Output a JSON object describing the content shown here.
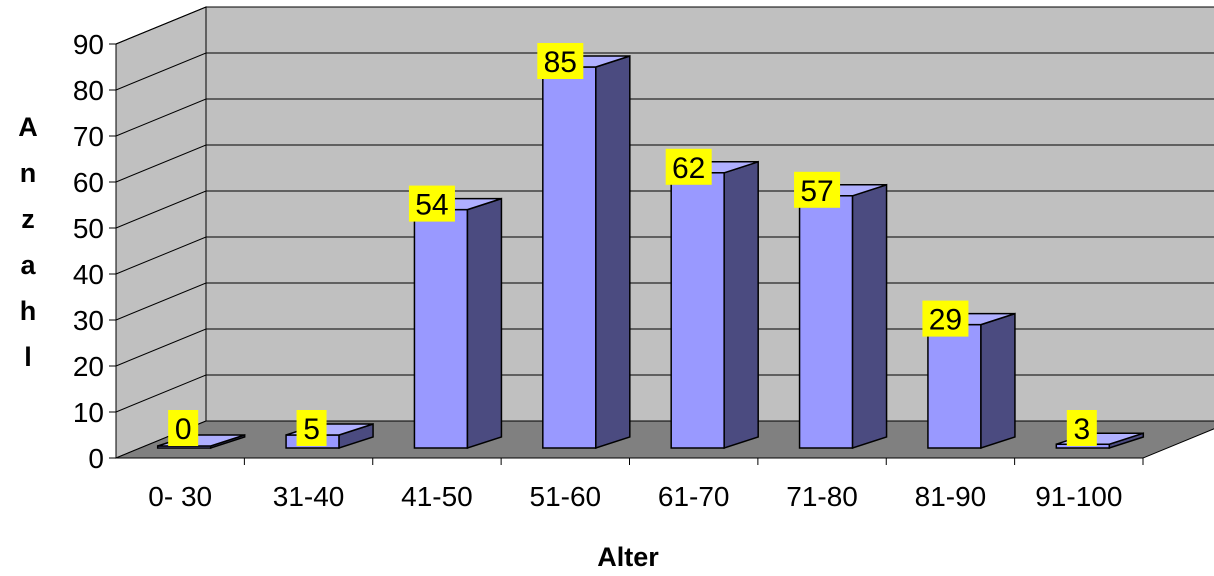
{
  "chart_data": {
    "type": "bar",
    "categories": [
      "0- 30",
      "31-40",
      "41-50",
      "51-60",
      "61-70",
      "71-80",
      "81-90",
      "91-100"
    ],
    "values": [
      0,
      5,
      54,
      85,
      62,
      57,
      29,
      3
    ],
    "title": "",
    "xlabel": "Alter",
    "ylabel_letters": [
      "A",
      "n",
      "z",
      "a",
      "h",
      "l"
    ],
    "ylim": [
      0,
      90
    ],
    "yticks": [
      "0",
      "10",
      "20",
      "30",
      "40",
      "50",
      "60",
      "70",
      "80",
      "90"
    ],
    "grid": true,
    "three_d": true,
    "colors": {
      "wall": "#c0c0c0",
      "floor": "#808080",
      "bar_front": "#9999ff",
      "bar_side": "#4b4b80",
      "bar_top": "#b0b0ff",
      "label_bg": "#ffff00"
    }
  }
}
